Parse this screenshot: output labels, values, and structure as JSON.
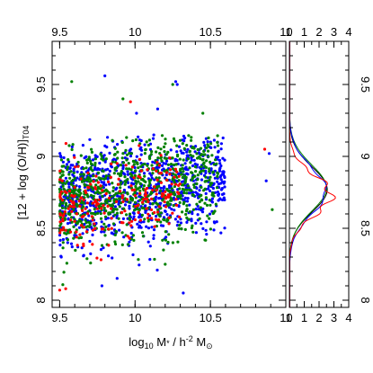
{
  "chart_data": [
    {
      "type": "scatter",
      "xlabel": "log10 M* / h-2 M⊙",
      "ylabel": "[12 + log (O/H)]T04",
      "xlim": [
        9.45,
        11.0
      ],
      "ylim": [
        7.95,
        9.8
      ],
      "x_ticks": [
        "9.5",
        "10",
        "10.5",
        "11"
      ],
      "y_ticks": [
        "8",
        "8.5",
        "9",
        "9.5"
      ],
      "ticks_mirrored": "top and right",
      "grid": false,
      "series_colors": [
        "#0000ff",
        "#008000",
        "#ff0000"
      ],
      "clusters": [
        {
          "color": "#0000ff",
          "count": 900,
          "x_range": [
            9.5,
            10.6
          ],
          "y_mean": 8.76,
          "y_spread": 0.17
        },
        {
          "color": "#008000",
          "count": 800,
          "x_range": [
            9.5,
            10.55
          ],
          "y_mean": 8.77,
          "y_spread": 0.17
        },
        {
          "color": "#ff0000",
          "count": 220,
          "x_range": [
            9.5,
            10.3
          ],
          "y_mean": 8.74,
          "y_spread": 0.13
        }
      ],
      "outliers": [
        {
          "color": "#0000ff",
          "x": 9.8,
          "y": 9.56
        },
        {
          "color": "#008000",
          "x": 9.58,
          "y": 9.52
        },
        {
          "color": "#0000ff",
          "x": 10.27,
          "y": 9.52
        },
        {
          "color": "#0000ff",
          "x": 10.28,
          "y": 9.5
        },
        {
          "color": "#008000",
          "x": 10.25,
          "y": 9.5
        },
        {
          "color": "#008000",
          "x": 9.92,
          "y": 9.4
        },
        {
          "color": "#ff0000",
          "x": 9.97,
          "y": 9.38
        },
        {
          "color": "#0000ff",
          "x": 10.15,
          "y": 9.33
        },
        {
          "color": "#0000ff",
          "x": 10.01,
          "y": 9.3
        },
        {
          "color": "#008000",
          "x": 10.45,
          "y": 9.3
        },
        {
          "color": "#ff0000",
          "x": 10.86,
          "y": 9.05
        },
        {
          "color": "#0000ff",
          "x": 10.89,
          "y": 9.02
        },
        {
          "color": "#008000",
          "x": 10.91,
          "y": 8.63
        },
        {
          "color": "#0000ff",
          "x": 10.87,
          "y": 8.83
        },
        {
          "color": "#ff0000",
          "x": 9.54,
          "y": 8.08
        },
        {
          "color": "#0000ff",
          "x": 9.78,
          "y": 8.1
        },
        {
          "color": "#0000ff",
          "x": 10.32,
          "y": 8.05
        },
        {
          "color": "#008000",
          "x": 10.2,
          "y": 8.25
        },
        {
          "color": "#ff0000",
          "x": 9.5,
          "y": 8.07
        }
      ]
    },
    {
      "type": "line",
      "description_axis": "distribution (horizontal)",
      "xlim": [
        0,
        4
      ],
      "ylim": [
        7.95,
        9.8
      ],
      "x_ticks": [
        "0",
        "1",
        "2",
        "3",
        "4"
      ],
      "y_ticks": [
        "8",
        "8.5",
        "9",
        "9.5"
      ],
      "series": [
        {
          "color": "#000000",
          "mean": 8.77,
          "sigma": 0.155,
          "peak": 2.55
        },
        {
          "color": "#008000",
          "mean": 8.78,
          "sigma": 0.16,
          "peak": 2.5
        },
        {
          "color": "#0000ff",
          "mean": 8.76,
          "sigma": 0.165,
          "peak": 2.45
        },
        {
          "color": "#ff0000",
          "mean": 8.73,
          "sigma": 0.14,
          "peak": 2.8
        }
      ]
    }
  ]
}
